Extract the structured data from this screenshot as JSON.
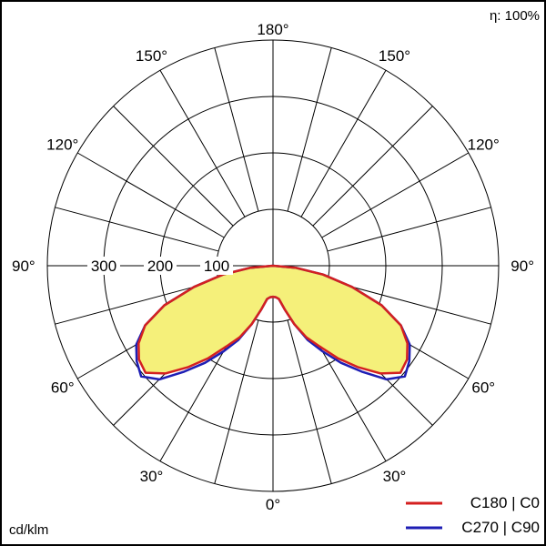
{
  "chart_data": {
    "type": "polar",
    "title": "",
    "efficiency_label": "η: 100%",
    "units_label": "cd/klm",
    "radial_max": 400,
    "radial_ticks": [
      100,
      200,
      300
    ],
    "radial_tick_labels": [
      "100",
      "200",
      "300"
    ],
    "radial_circles": [
      100,
      200,
      300,
      400
    ],
    "angle_step_deg": 15,
    "angle_labels": [
      {
        "text": "180°",
        "angle": 180,
        "side": "center"
      },
      {
        "text": "150°",
        "angle": 150,
        "side": "left"
      },
      {
        "text": "150°",
        "angle": 150,
        "side": "right"
      },
      {
        "text": "120°",
        "angle": 120,
        "side": "left"
      },
      {
        "text": "120°",
        "angle": 120,
        "side": "right"
      },
      {
        "text": "90°",
        "angle": 90,
        "side": "left"
      },
      {
        "text": "90°",
        "angle": 90,
        "side": "right"
      },
      {
        "text": "60°",
        "angle": 60,
        "side": "left"
      },
      {
        "text": "60°",
        "angle": 60,
        "side": "right"
      },
      {
        "text": "30°",
        "angle": 30,
        "side": "left"
      },
      {
        "text": "30°",
        "angle": 30,
        "side": "right"
      },
      {
        "text": "0°",
        "angle": 0,
        "side": "center"
      }
    ],
    "angles": [
      0,
      5,
      10,
      15,
      20,
      25,
      30,
      35,
      40,
      45,
      50,
      55,
      60,
      65,
      70,
      75,
      80,
      85,
      90
    ],
    "series": [
      {
        "name": "C180 | C0",
        "color": "#d42020",
        "values": [
          55,
          56,
          60,
          80,
          110,
          140,
          165,
          200,
          235,
          270,
          295,
          290,
          275,
          250,
          205,
          145,
          90,
          40,
          0
        ]
      },
      {
        "name": "C270 | C90",
        "color": "#1e1eb4",
        "values": [
          55,
          56,
          60,
          80,
          110,
          145,
          175,
          210,
          245,
          285,
          305,
          295,
          280,
          250,
          205,
          145,
          90,
          40,
          0
        ]
      }
    ],
    "fill_color": "#f5f07a",
    "legend_position": "bottom-right",
    "grid": true
  }
}
